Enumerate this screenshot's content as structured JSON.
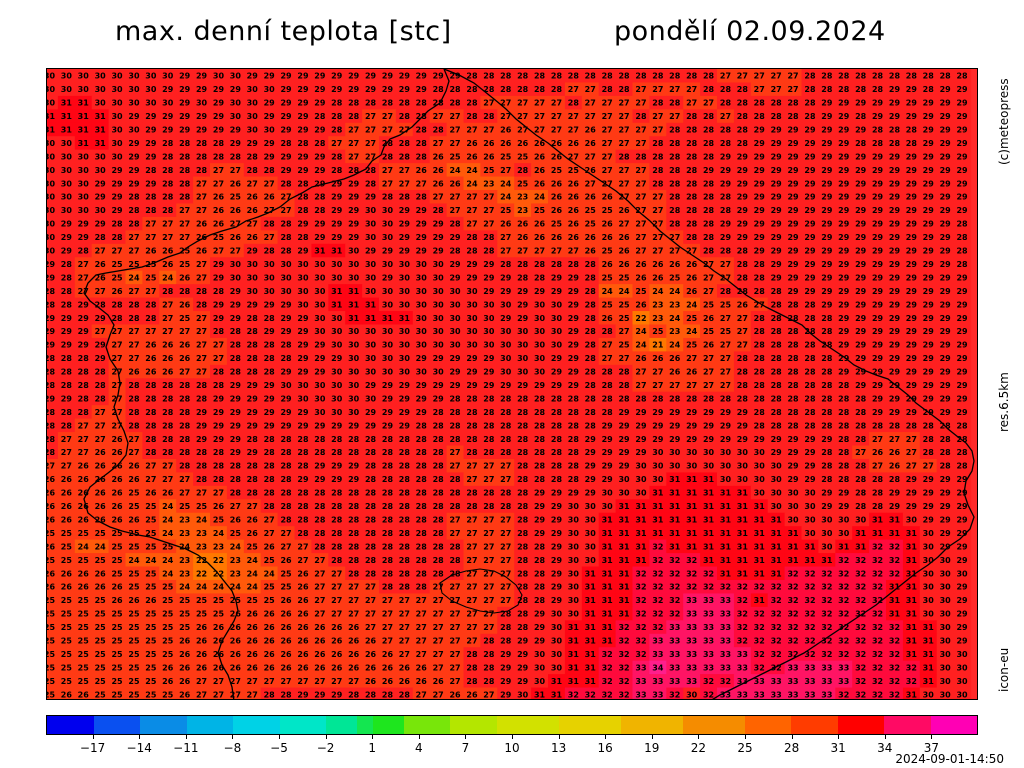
{
  "header": {
    "title": "max. denní teplota [stc]",
    "date": "pondělí 02.09.2024"
  },
  "side_labels": {
    "copyright": "(c)meteopress",
    "resolution": "res.6.5km",
    "model": "icon-eu"
  },
  "timestamp": "2024-09-01-14:50",
  "map": {
    "field": "maximum daily temperature",
    "value_range": [
      21,
      34
    ],
    "grid_rows": [
      "30 30 30 30 30 30 30 30 29 29 30 30 29 29 29 29 29 29 29 29 29 29 29 29 29 28 28 28 28 28 28 28 28 28 28 28 28 28 28 28 27 27 27 27 27 28 28 28 28 28 28 28 28 28 28",
      "30 30 30 30 30 30 30 29 29 29 29 29 30 30 29 29 29 29 29 29 29 29 29 28 28 28 28 28 28 28 28 27 27 28 28 27 27 27 27 28 28 28 27 27 27 28 28 28 28 28 29 29 28 29 29",
      "30 31 31 30 30 30 30 30 29 30 29 30 30 29 29 29 29 28 28 28 28 28 28 28 28 28 27 27 27 27 27 28 27 27 27 27 28 28 27 27 28 28 28 28 28 28 29 29 29 29 29 29 29 29 29",
      "31 31 31 31 30 29 29 29 29 29 29 30 30 29 29 29 28 28 28 27 27 28 28 27 27 28 28 27 27 27 27 27 27 27 27 28 27 27 28 28 27 28 28 28 28 28 29 29 28 29 29 29 29 29 29",
      "31 31 31 31 30 30 29 29 29 29 29 29 30 30 29 29 29 28 27 27 27 27 28 28 27 27 27 26 27 27 27 27 26 27 27 27 27 28 28 28 28 28 29 29 29 29 29 29 29 28 28 28 29 29 29",
      "30 30 31 31 30 29 29 28 28 28 28 29 29 29 28 28 28 27 27 27 28 28 28 27 27 26 26 26 26 26 26 26 26 27 27 27 28 28 28 28 28 28 29 29 29 29 29 29 28 28 28 28 29 29 29",
      "30 30 30 30 30 29 29 28 28 28 28 28 28 29 29 29 29 28 27 27 28 28 28 26 25 26 26 25 25 26 26 27 27 27 28 28 28 28 28 28 29 29 29 29 29 29 29 29 29 29 29 29 29 29 29",
      "30 30 30 30 29 29 28 28 28 28 27 27 28 28 29 29 29 28 28 28 27 27 26 26 24 24 25 27 28 26 25 25 26 27 27 27 28 28 28 29 29 29 29 29 29 29 29 29 29 29 29 29 29 29 29",
      "30 30 30 29 29 29 29 28 28 27 27 26 27 27 28 28 29 29 29 28 27 27 27 26 26 24 23 24 25 26 26 26 27 27 27 27 28 28 28 28 29 29 29 29 29 29 29 29 29 29 29 29 29 29 29",
      "30 30 30 29 29 28 28 28 28 27 26 25 26 26 27 28 28 29 29 29 28 28 28 27 27 27 27 24 23 24 26 26 26 26 27 27 27 28 28 28 28 29 29 29 29 29 29 29 29 29 29 29 29 29 29",
      "30 30 30 30 29 28 28 28 27 27 26 26 26 27 27 28 28 29 29 30 30 29 29 28 27 27 27 25 23 25 26 26 25 25 26 27 27 28 28 28 28 29 29 29 29 29 29 29 29 29 29 29 29 29 29",
      "30 29 29 29 28 28 27 27 27 26 26 27 27 28 28 29 29 29 29 30 30 29 29 29 28 27 27 26 26 26 25 26 25 26 27 27 27 28 28 28 29 29 29 29 29 29 29 29 29 29 29 29 29 29 28",
      "30 29 29 28 28 27 27 27 27 26 25 26 26 27 28 28 29 29 29 30 30 29 29 29 29 28 28 27 26 26 26 26 26 26 26 27 27 27 28 28 29 29 29 29 29 29 29 29 29 29 29 29 29 29 28",
      "30 29 28 27 27 27 26 26 25 26 27 27 29 28 28 29 31 31 30 29 29 29 29 29 28 28 28 27 27 27 27 27 26 25 26 27 27 27 27 28 28 28 29 29 29 29 29 29 29 29 29 29 29 29 28",
      "29 28 27 26 25 25 25 26 25 27 29 30 30 30 30 30 30 30 30 30 30 30 30 30 29 29 29 28 28 28 28 28 28 26 26 26 26 26 26 27 27 28 28 29 29 29 29 29 29 29 29 29 29 29 28",
      "29 28 27 26 25 24 25 24 26 27 29 30 30 30 30 30 30 30 30 30 29 30 30 30 29 29 29 29 28 28 29 29 28 25 25 26 26 25 26 27 27 28 28 29 29 29 29 29 29 29 29 29 29 29 29",
      "28 28 27 27 26 27 27 28 28 28 28 29 30 30 30 30 30 31 31 30 30 30 30 30 30 30 29 29 29 29 29 29 28 24 24 25 24 24 26 27 28 28 28 28 29 29 29 29 29 29 29 29 29 29 29",
      "28 28 29 28 28 28 28 27 26 28 29 29 29 29 29 30 30 31 31 31 30 30 30 30 30 30 30 30 29 30 30 29 28 25 25 26 23 23 24 25 25 26 27 28 28 28 29 29 29 29 29 29 29 29 29",
      "29 29 29 29 28 28 28 27 25 27 29 29 28 28 29 29 30 30 31 31 31 31 30 30 30 30 30 29 29 30 30 29 28 26 25 22 23 24 25 26 27 27 28 28 28 28 28 29 29 29 29 29 29 29 29",
      "29 29 29 27 27 27 27 27 27 27 28 28 28 29 29 29 30 30 30 30 30 30 30 30 30 30 30 30 30 30 30 29 28 28 27 24 25 23 24 25 25 27 28 28 28 28 28 29 29 29 29 29 29 29 29",
      "29 29 29 29 27 27 26 26 26 27 27 28 28 28 28 29 29 30 30 30 30 30 30 30 30 30 30 30 30 30 30 29 28 27 25 24 21 24 25 26 27 27 28 28 28 28 28 29 29 29 29 29 29 29 29",
      "28 28 28 29 27 27 26 26 26 27 27 28 28 28 28 29 29 29 30 30 30 30 29 29 29 29 29 30 30 30 29 29 28 27 27 26 26 26 27 27 27 28 28 28 28 28 28 29 29 29 29 29 29 29 29",
      "28 28 28 28 27 26 26 26 27 27 28 28 28 28 29 29 29 30 30 30 30 30 30 30 29 29 29 30 30 30 29 29 28 28 28 27 27 26 26 27 27 28 28 28 28 28 28 29 29 29 29 29 29 29 29",
      "28 28 28 28 27 28 28 28 28 28 28 29 29 29 30 30 30 30 30 29 29 29 29 29 29 29 29 29 29 29 29 29 28 28 28 27 27 27 27 27 27 28 28 28 28 28 28 28 29 29 29 29 29 29 29",
      "29 29 28 28 27 28 28 28 28 28 29 29 29 29 29 30 30 30 30 30 29 29 29 29 28 28 28 28 28 28 28 28 28 28 28 28 28 28 28 28 28 28 28 28 28 28 28 28 28 29 29 29 29 29 29",
      "28 28 28 27 27 28 28 28 28 29 29 29 29 29 29 29 30 30 30 29 29 29 29 28 28 28 28 28 28 28 28 28 28 28 29 29 29 29 29 29 29 29 28 28 28 28 28 28 28 29 29 29 29 29 29",
      "28 28 27 27 27 28 28 28 28 29 29 29 29 29 29 29 29 29 29 29 29 29 28 28 28 28 28 28 28 28 28 28 28 29 29 29 29 29 29 29 29 29 28 28 28 28 28 28 28 28 28 28 28 28 28",
      "28 27 27 27 26 27 28 28 28 29 29 29 28 28 28 28 28 28 28 28 28 28 28 28 28 28 28 28 28 28 28 28 29 29 29 29 29 29 29 29 29 29 29 29 29 29 29 28 28 27 27 27 28 28 28",
      "28 27 27 26 26 27 28 28 28 28 28 29 29 28 28 28 28 28 28 28 28 28 28 28 27 28 28 28 28 28 28 28 29 29 29 29 30 30 30 30 30 30 30 29 29 29 28 28 27 26 26 27 28 28 28",
      "27 27 26 26 26 26 27 27 28 28 28 28 28 28 28 28 29 29 29 28 28 28 28 28 27 27 27 27 28 28 28 28 29 29 29 30 30 30 30 30 30 30 30 30 29 29 28 28 28 27 26 27 27 28 28",
      "26 26 26 26 26 26 27 27 27 28 28 28 28 28 28 29 29 29 29 28 28 28 28 28 28 27 27 27 28 28 28 28 29 29 30 30 30 31 31 31 30 30 30 30 29 29 28 28 28 28 28 29 29 29 29",
      "26 26 26 26 26 25 26 26 27 27 27 28 28 28 28 28 28 28 28 28 28 28 28 28 28 28 28 28 28 29 29 29 29 30 30 30 31 31 31 31 31 31 30 30 30 30 29 29 28 28 29 29 29 29 29",
      "26 26 26 26 26 25 25 24 25 25 26 27 27 28 28 28 28 28 28 28 28 28 28 28 28 28 28 28 28 29 29 30 30 30 31 31 31 31 31 31 31 31 31 30 30 30 29 29 28 28 29 29 29 29 29",
      "26 26 26 26 26 26 25 24 23 24 25 26 26 27 28 28 28 28 28 28 28 28 28 28 27 27 27 27 28 29 29 30 30 31 31 31 31 31 31 31 31 31 31 31 30 30 30 30 30 31 31 30 29 29 29",
      "25 25 25 25 25 25 25 24 23 23 24 25 26 27 27 28 28 28 28 28 28 28 28 28 27 27 27 27 28 29 29 30 30 31 31 31 31 31 31 31 31 31 31 31 31 30 30 30 31 31 31 31 30 29 29",
      "26 25 24 24 25 25 25 25 24 23 23 24 25 26 27 27 28 28 28 28 28 28 28 28 28 27 27 27 28 28 29 30 30 31 31 31 32 31 31 31 31 31 31 31 31 31 30 31 31 32 32 31 30 29 29",
      "25 25 25 25 25 24 24 24 23 22 22 23 24 25 26 27 27 28 28 28 28 28 28 28 28 27 27 27 28 28 29 30 30 31 31 31 32 32 32 31 31 31 31 31 31 31 31 32 32 32 32 31 30 30 29",
      "26 26 26 26 25 25 25 24 23 22 22 23 24 24 25 26 27 27 28 28 28 28 28 28 28 27 27 27 28 28 29 30 31 31 31 32 32 32 32 32 31 31 31 31 32 32 32 32 32 32 32 31 30 30 30",
      "26 26 26 26 26 25 25 25 24 24 24 24 24 25 25 26 27 27 27 27 28 28 28 27 27 27 27 27 28 28 29 30 31 31 31 32 32 32 32 32 32 32 32 32 32 32 32 32 32 32 31 31 30 30 29",
      "25 25 25 25 26 26 26 25 25 25 25 25 25 25 26 26 27 27 27 27 27 27 27 27 27 27 27 27 28 28 29 30 31 31 31 32 32 32 33 33 33 32 31 32 32 32 32 32 32 32 31 31 30 30 29",
      "25 25 25 25 25 25 25 25 25 25 25 26 26 26 26 26 27 27 27 27 27 27 27 27 27 27 27 28 28 29 30 30 31 31 31 32 32 32 33 33 33 32 32 32 32 32 32 32 32 32 31 31 30 30 29",
      "25 25 25 25 25 25 25 25 25 26 26 26 26 26 26 26 26 26 26 27 27 27 27 27 27 27 27 28 28 29 30 31 31 31 32 32 32 33 33 33 33 32 32 32 32 32 32 32 32 32 32 31 31 30 29",
      "25 25 25 25 25 25 25 25 26 26 26 26 26 26 26 26 26 26 26 26 27 27 27 27 27 27 28 28 29 29 30 31 31 31 32 32 33 33 33 33 33 32 32 32 32 32 32 32 32 32 32 31 31 30 29",
      "25 25 25 25 25 25 25 25 26 26 26 26 26 26 26 26 26 26 26 26 26 27 27 27 27 28 28 29 29 30 30 31 31 32 32 32 33 33 33 33 33 33 32 32 32 32 32 32 32 32 32 31 31 30 30",
      "25 25 25 25 25 25 25 26 26 26 26 26 26 26 26 26 26 26 26 26 26 26 26 27 27 28 28 29 29 30 30 31 31 32 32 33 34 33 33 33 33 33 32 32 33 33 33 33 32 32 32 32 31 30 30",
      "25 25 25 25 25 25 25 26 26 27 27 27 27 27 27 27 27 27 27 26 26 26 26 26 27 28 28 29 29 30 31 31 31 32 32 33 33 33 33 32 32 33 33 33 33 33 33 33 32 32 32 32 31 30 30",
      "25 26 26 25 25 25 25 25 26 27 27 27 27 28 28 29 29 29 28 28 28 28 27 27 26 26 27 29 30 31 31 32 32 32 32 33 33 32 30 32 33 33 33 33 33 33 33 32 32 32 32 31 30 30 30"
    ]
  },
  "legend": {
    "tick_labels": [
      "-17",
      "-14",
      "-11",
      "-8",
      "-5",
      "-2",
      "1",
      "4",
      "7",
      "10",
      "13",
      "16",
      "19",
      "22",
      "25",
      "28",
      "31",
      "34",
      "37"
    ],
    "color_stops": [
      "#0000e6",
      "#0a6be6",
      "#00b4e6",
      "#00e6d2",
      "#00e68c",
      "#1ee61e",
      "#8ce60a",
      "#c8e600",
      "#e6d200",
      "#e6a000",
      "#f06e00",
      "#ff3c1e",
      "#ff0000",
      "#ff2878",
      "#ff00c8"
    ]
  }
}
